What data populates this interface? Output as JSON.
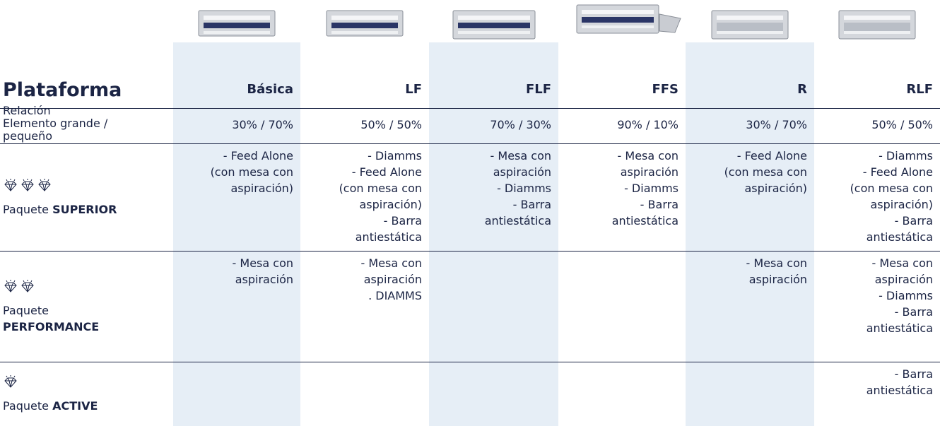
{
  "header": {
    "title": "Plataforma",
    "columns": [
      "Básica",
      "LF",
      "FLF",
      "FFS",
      "R",
      "RLF"
    ]
  },
  "rows": [
    {
      "label": {
        "lines": [
          "Relación",
          "Elemento grande /",
          "pequeño"
        ]
      },
      "cells": [
        [
          "30% / 70%"
        ],
        [
          "50% / 50%"
        ],
        [
          "70% / 30%"
        ],
        [
          "90% / 10%"
        ],
        [
          "30% / 70%"
        ],
        [
          "50% / 50%"
        ]
      ]
    },
    {
      "label": {
        "text": "Paquete",
        "bold": "SUPERIOR"
      },
      "cells": [
        [
          "- Feed Alone",
          "(con mesa con",
          "aspiración)"
        ],
        [
          "- Diamms",
          "- Feed Alone",
          "(con mesa con",
          "aspiración)",
          "- Barra",
          "antiestática"
        ],
        [
          "- Mesa con",
          "aspiración",
          "- Diamms",
          "- Barra",
          "antiestática"
        ],
        [
          "- Mesa con",
          "aspiración",
          "- Diamms",
          "- Barra",
          "antiestática"
        ],
        [
          "- Feed Alone",
          "(con mesa con",
          "aspiración)"
        ],
        [
          "- Diamms",
          "- Feed Alone",
          "(con mesa con",
          "aspiración)",
          "- Barra",
          "antiestática"
        ]
      ]
    },
    {
      "label": {
        "text": "Paquete",
        "bold": "PERFORMANCE"
      },
      "cells": [
        [
          "- Mesa con",
          "aspiración"
        ],
        [
          "- Mesa con",
          "aspiración",
          ". DIAMMS"
        ],
        [],
        [],
        [
          "- Mesa con",
          "aspiración"
        ],
        [
          "- Mesa con",
          "aspiración",
          "- Diamms",
          "- Barra",
          "antiestática"
        ]
      ]
    },
    {
      "label": {
        "text": "Paquete",
        "bold": "ACTIVE"
      },
      "cells": [
        [],
        [],
        [],
        [],
        [],
        [
          "- Barra",
          "antiestática"
        ]
      ]
    }
  ]
}
